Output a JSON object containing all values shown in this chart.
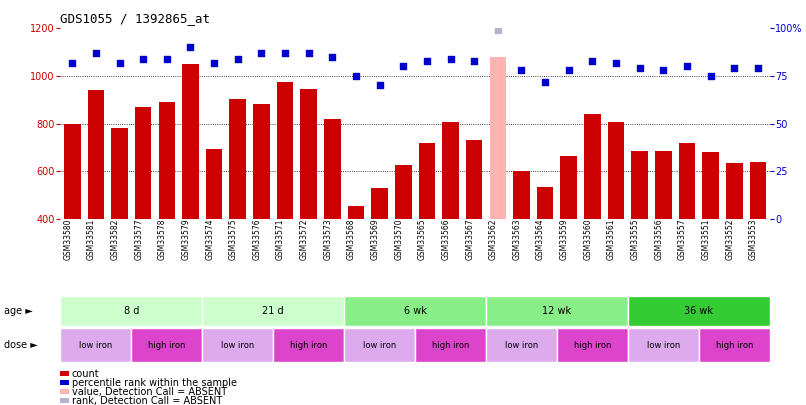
{
  "title": "GDS1055 / 1392865_at",
  "samples": [
    "GSM33580",
    "GSM33581",
    "GSM33582",
    "GSM33577",
    "GSM33578",
    "GSM33579",
    "GSM33574",
    "GSM33575",
    "GSM33576",
    "GSM33571",
    "GSM33572",
    "GSM33573",
    "GSM33568",
    "GSM33569",
    "GSM33570",
    "GSM33565",
    "GSM33566",
    "GSM33567",
    "GSM33562",
    "GSM33563",
    "GSM33564",
    "GSM33559",
    "GSM33560",
    "GSM33561",
    "GSM33555",
    "GSM33556",
    "GSM33557",
    "GSM33551",
    "GSM33552",
    "GSM33553"
  ],
  "counts": [
    800,
    940,
    780,
    870,
    890,
    1050,
    695,
    905,
    880,
    975,
    945,
    820,
    455,
    530,
    625,
    720,
    805,
    730,
    1080,
    600,
    535,
    665,
    840,
    805,
    685,
    685,
    720,
    680,
    635,
    640
  ],
  "percentile_ranks": [
    82,
    87,
    82,
    84,
    84,
    90,
    82,
    84,
    87,
    87,
    87,
    85,
    75,
    70,
    80,
    83,
    84,
    83,
    99,
    78,
    72,
    78,
    83,
    82,
    79,
    78,
    80,
    75,
    79,
    79
  ],
  "absent_bar_idx": 18,
  "absent_rank_idx": 18,
  "ylim_left": [
    400,
    1200
  ],
  "ylim_right": [
    0,
    100
  ],
  "yticks_left": [
    400,
    600,
    800,
    1000,
    1200
  ],
  "yticks_right": [
    0,
    25,
    50,
    75,
    100
  ],
  "bar_color": "#cc0000",
  "absent_bar_color": "#ffb3b3",
  "dot_color": "#0000cc",
  "absent_dot_color": "#b3b3cc",
  "background_color": "#ffffff",
  "age_groups": [
    {
      "label": "8 d",
      "start": 0,
      "end": 6,
      "color": "#ccffcc"
    },
    {
      "label": "21 d",
      "start": 6,
      "end": 12,
      "color": "#ccffcc"
    },
    {
      "label": "6 wk",
      "start": 12,
      "end": 18,
      "color": "#88ee88"
    },
    {
      "label": "12 wk",
      "start": 18,
      "end": 24,
      "color": "#88ee88"
    },
    {
      "label": "36 wk",
      "start": 24,
      "end": 30,
      "color": "#33cc33"
    }
  ],
  "dose_low_color": "#ddaaee",
  "dose_high_color": "#dd44cc",
  "dose_groups": [
    {
      "label": "low iron",
      "start": 0,
      "end": 3
    },
    {
      "label": "high iron",
      "start": 3,
      "end": 6
    },
    {
      "label": "low iron",
      "start": 6,
      "end": 9
    },
    {
      "label": "high iron",
      "start": 9,
      "end": 12
    },
    {
      "label": "low iron",
      "start": 12,
      "end": 15
    },
    {
      "label": "high iron",
      "start": 15,
      "end": 18
    },
    {
      "label": "low iron",
      "start": 18,
      "end": 21
    },
    {
      "label": "high iron",
      "start": 21,
      "end": 24
    },
    {
      "label": "low iron",
      "start": 24,
      "end": 27
    },
    {
      "label": "high iron",
      "start": 27,
      "end": 30
    }
  ],
  "legend_labels": [
    "count",
    "percentile rank within the sample",
    "value, Detection Call = ABSENT",
    "rank, Detection Call = ABSENT"
  ],
  "legend_colors": [
    "#cc0000",
    "#0000cc",
    "#ffb3b3",
    "#b3b3cc"
  ]
}
